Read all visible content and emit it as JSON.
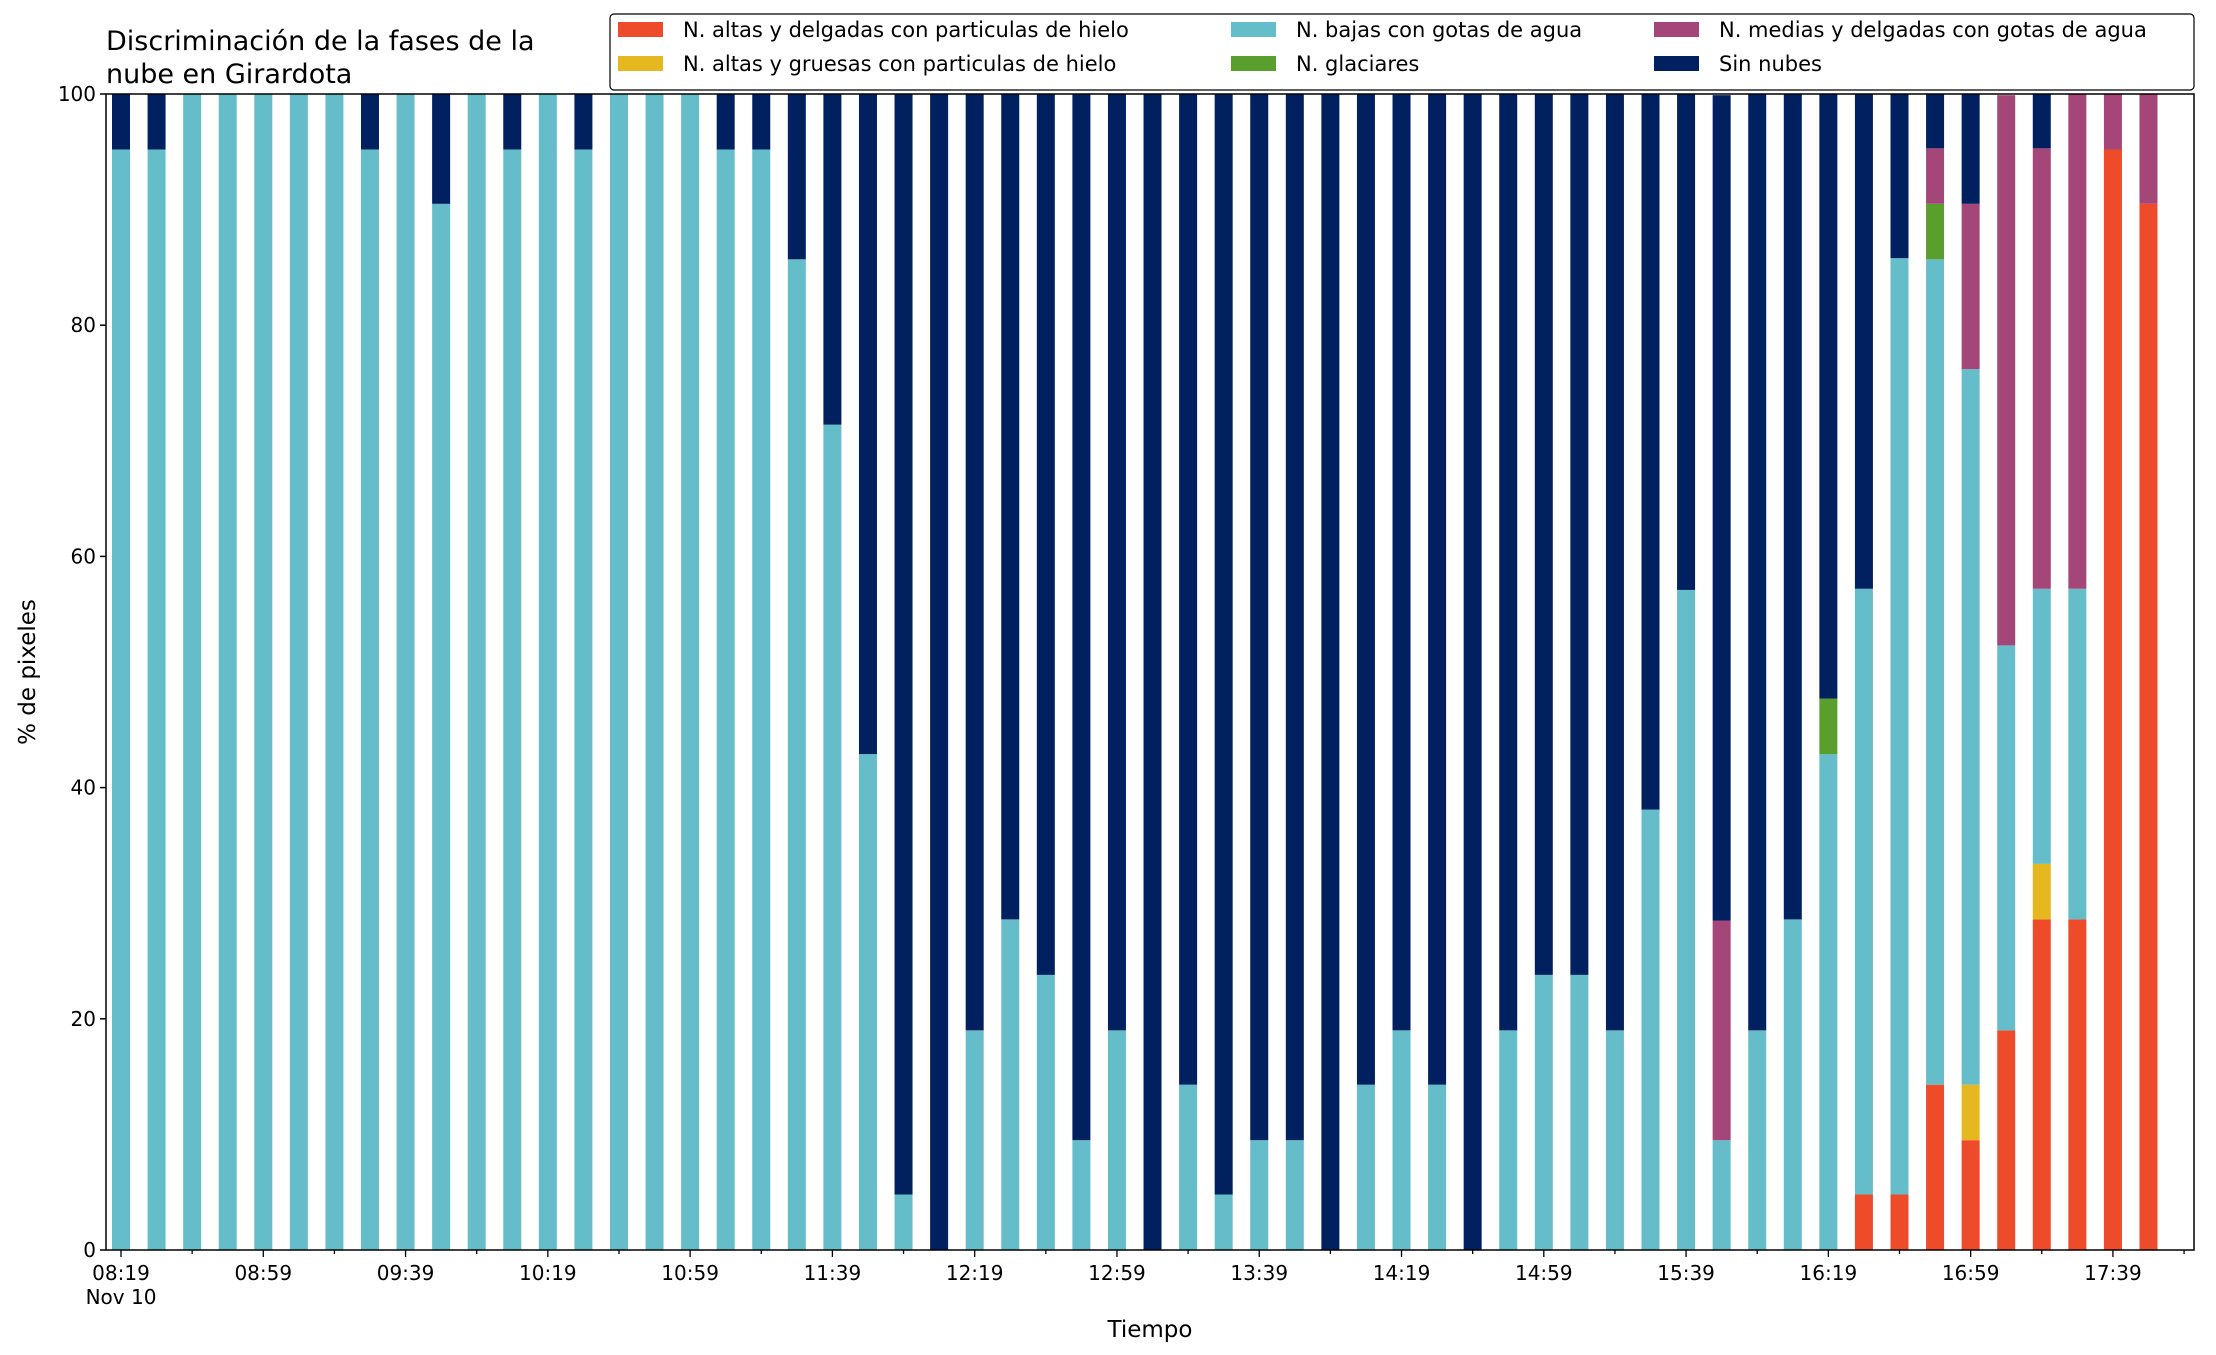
{
  "chart_data": {
    "type": "bar",
    "stacked": true,
    "title": "Discriminación de la fases de la nube en Girardota",
    "xlabel": "Tiempo",
    "ylabel": "% de pixeles",
    "ylim": [
      0,
      100
    ],
    "yticks": [
      "0",
      "20",
      "40",
      "60",
      "80",
      "100"
    ],
    "xtick_labels": [
      "08:19",
      "08:59",
      "09:39",
      "10:19",
      "10:59",
      "11:39",
      "12:19",
      "12:59",
      "13:39",
      "14:19",
      "14:59",
      "15:39",
      "16:19",
      "16:59",
      "17:39"
    ],
    "xtick_sublabel": "Nov 10",
    "legend_position": "top-right",
    "bar_count": 58,
    "series": [
      {
        "name": "N. altas y delgadas con particulas de hielo",
        "color": "#ee4b2b",
        "values": [
          0,
          0,
          0,
          0,
          0,
          0,
          0,
          0,
          0,
          0,
          0,
          0,
          0,
          0,
          0,
          0,
          0,
          0,
          0,
          0,
          0,
          0,
          0,
          0,
          0,
          0,
          0,
          0,
          0,
          0,
          0,
          0,
          0,
          0,
          0,
          0,
          0,
          0,
          0,
          0,
          0,
          0,
          0,
          0,
          0,
          0,
          0,
          0,
          0,
          4.8,
          4.8,
          14.3,
          9.5,
          19.0,
          28.6,
          28.6,
          95.2,
          90.5
        ]
      },
      {
        "name": "N. altas y gruesas con particulas de hielo",
        "color": "#e6b81f",
        "values": [
          0,
          0,
          0,
          0,
          0,
          0,
          0,
          0,
          0,
          0,
          0,
          0,
          0,
          0,
          0,
          0,
          0,
          0,
          0,
          0,
          0,
          0,
          0,
          0,
          0,
          0,
          0,
          0,
          0,
          0,
          0,
          0,
          0,
          0,
          0,
          0,
          0,
          0,
          0,
          0,
          0,
          0,
          0,
          0,
          0,
          0,
          0,
          0,
          0,
          0,
          0,
          0,
          4.8,
          0,
          4.8,
          0,
          0,
          0
        ]
      },
      {
        "name": "N. bajas con gotas de agua",
        "color": "#66bdca",
        "values": [
          95.2,
          95.2,
          100,
          100,
          100,
          100,
          100,
          95.2,
          100,
          90.5,
          100,
          95.2,
          100,
          95.2,
          100,
          100,
          100,
          95.2,
          95.2,
          85.7,
          71.4,
          42.9,
          4.8,
          0,
          19.0,
          28.6,
          23.8,
          9.5,
          19.0,
          0,
          14.3,
          4.8,
          9.5,
          9.5,
          0,
          14.3,
          19.0,
          14.3,
          0,
          19.0,
          23.8,
          23.8,
          19.0,
          38.1,
          57.1,
          9.5,
          19.0,
          28.6,
          42.9,
          52.4,
          81.0,
          71.4,
          61.9,
          33.3,
          23.8,
          28.6,
          0,
          0
        ]
      },
      {
        "name": "N. glaciares",
        "color": "#5a9e2e",
        "values": [
          0,
          0,
          0,
          0,
          0,
          0,
          0,
          0,
          0,
          0,
          0,
          0,
          0,
          0,
          0,
          0,
          0,
          0,
          0,
          0,
          0,
          0,
          0,
          0,
          0,
          0,
          0,
          0,
          0,
          0,
          0,
          0,
          0,
          0,
          0,
          0,
          0,
          0,
          0,
          0,
          0,
          0,
          0,
          0,
          0,
          0,
          0,
          0,
          4.8,
          0,
          0,
          4.8,
          0,
          0,
          0,
          0,
          0,
          0
        ]
      },
      {
        "name": "N. medias y delgadas con gotas de agua",
        "color": "#a54679",
        "values": [
          0,
          0,
          0,
          0,
          0,
          0,
          0,
          0,
          0,
          0,
          0,
          0,
          0,
          0,
          0,
          0,
          0,
          0,
          0,
          0,
          0,
          0,
          0,
          0,
          0,
          0,
          0,
          0,
          0,
          0,
          0,
          0,
          0,
          0,
          0,
          0,
          0,
          0,
          0,
          0,
          0,
          0,
          0,
          0,
          0,
          19.0,
          0,
          0,
          0,
          0,
          0,
          4.8,
          14.3,
          47.6,
          38.1,
          42.9,
          4.8,
          9.5
        ]
      },
      {
        "name": "Sin nubes",
        "color": "#00205f",
        "values": [
          4.8,
          4.8,
          0,
          0,
          0,
          0,
          0,
          4.8,
          0,
          9.5,
          0,
          4.8,
          0,
          4.8,
          0,
          0,
          0,
          4.8,
          4.8,
          14.3,
          28.6,
          57.1,
          95.2,
          100,
          81.0,
          71.4,
          76.2,
          90.5,
          81.0,
          100,
          85.7,
          95.2,
          90.5,
          90.5,
          100,
          85.7,
          81.0,
          85.7,
          100,
          81.0,
          76.2,
          76.2,
          81.0,
          61.9,
          42.9,
          71.4,
          81.0,
          71.4,
          52.4,
          42.9,
          14.3,
          4.8,
          9.5,
          0,
          4.8,
          0,
          0,
          0
        ]
      }
    ],
    "legend": {
      "columns": [
        [
          "N. altas y delgadas con particulas de hielo",
          "N. altas y gruesas con particulas de hielo"
        ],
        [
          "N. bajas con gotas de agua",
          "N. glaciares"
        ],
        [
          "N. medias y delgadas con gotas de agua",
          "Sin nubes"
        ]
      ]
    }
  }
}
